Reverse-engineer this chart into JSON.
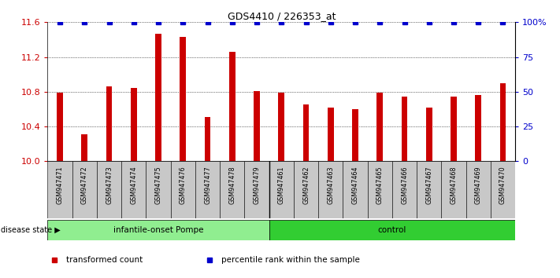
{
  "title": "GDS4410 / 226353_at",
  "samples": [
    "GSM947471",
    "GSM947472",
    "GSM947473",
    "GSM947474",
    "GSM947475",
    "GSM947476",
    "GSM947477",
    "GSM947478",
    "GSM947479",
    "GSM947461",
    "GSM947462",
    "GSM947463",
    "GSM947464",
    "GSM947465",
    "GSM947466",
    "GSM947467",
    "GSM947468",
    "GSM947469",
    "GSM947470"
  ],
  "bar_values": [
    10.79,
    10.31,
    10.86,
    10.84,
    11.47,
    11.43,
    10.51,
    11.26,
    10.81,
    10.79,
    10.65,
    10.62,
    10.6,
    10.79,
    10.74,
    10.62,
    10.74,
    10.76,
    10.9
  ],
  "percentile_values": [
    100,
    100,
    100,
    100,
    100,
    100,
    100,
    100,
    100,
    100,
    100,
    100,
    100,
    100,
    100,
    100,
    100,
    100,
    100
  ],
  "groups": [
    {
      "label": "infantile-onset Pompe",
      "start": 0,
      "end": 9,
      "color": "#90ee90"
    },
    {
      "label": "control",
      "start": 9,
      "end": 19,
      "color": "#32cd32"
    }
  ],
  "bar_color": "#cc0000",
  "percentile_color": "#0000cc",
  "ylim_left": [
    10.0,
    11.6
  ],
  "ylim_right": [
    0,
    100
  ],
  "yticks_left": [
    10.0,
    10.4,
    10.8,
    11.2,
    11.6
  ],
  "yticks_right": [
    0,
    25,
    50,
    75,
    100
  ],
  "yticklabels_right": [
    "0",
    "25",
    "50",
    "75",
    "100%"
  ],
  "legend_items": [
    {
      "label": "transformed count",
      "color": "#cc0000"
    },
    {
      "label": "percentile rank within the sample",
      "color": "#0000cc"
    }
  ],
  "disease_state_label": "disease state",
  "background_color": "#ffffff",
  "sample_box_color": "#c8c8c8",
  "bar_width": 0.25
}
